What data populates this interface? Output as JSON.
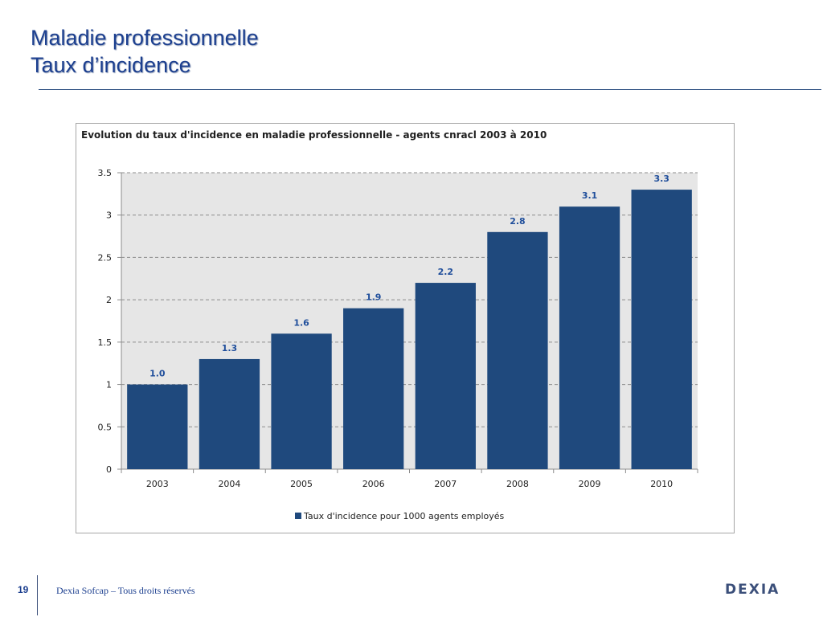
{
  "slide": {
    "title_line1": "Maladie professionnelle",
    "title_line2": "Taux d’incidence",
    "page_number": "19",
    "footer_text": "Dexia Sofcap – Tous droits réservés",
    "logo_text": "DEXIA"
  },
  "colors": {
    "title": "#1c3f8f",
    "bar": "#1f497d",
    "value_label": "#1f4e9b",
    "plot_background": "#e6e6e6"
  },
  "chart_data": {
    "type": "bar",
    "title": "Evolution du taux d'incidence en maladie professionnelle - agents cnracl 2003 à 2010",
    "categories": [
      "2003",
      "2004",
      "2005",
      "2006",
      "2007",
      "2008",
      "2009",
      "2010"
    ],
    "series": [
      {
        "name": "Taux d'incidence pour 1000 agents employés",
        "values": [
          1.0,
          1.3,
          1.6,
          1.9,
          2.2,
          2.8,
          3.1,
          3.3
        ],
        "data_labels": [
          "1.0",
          "1.3",
          "1.6",
          "1.9",
          "2.2",
          "2.8",
          "3.1",
          "3.3"
        ]
      }
    ],
    "y_ticks": [
      "0",
      "0.5",
      "1",
      "1.5",
      "2",
      "2.5",
      "3",
      "3.5"
    ],
    "ylim": [
      0,
      3.5
    ],
    "xlabel": "",
    "ylabel": "",
    "grid": true,
    "legend_position": "bottom"
  }
}
